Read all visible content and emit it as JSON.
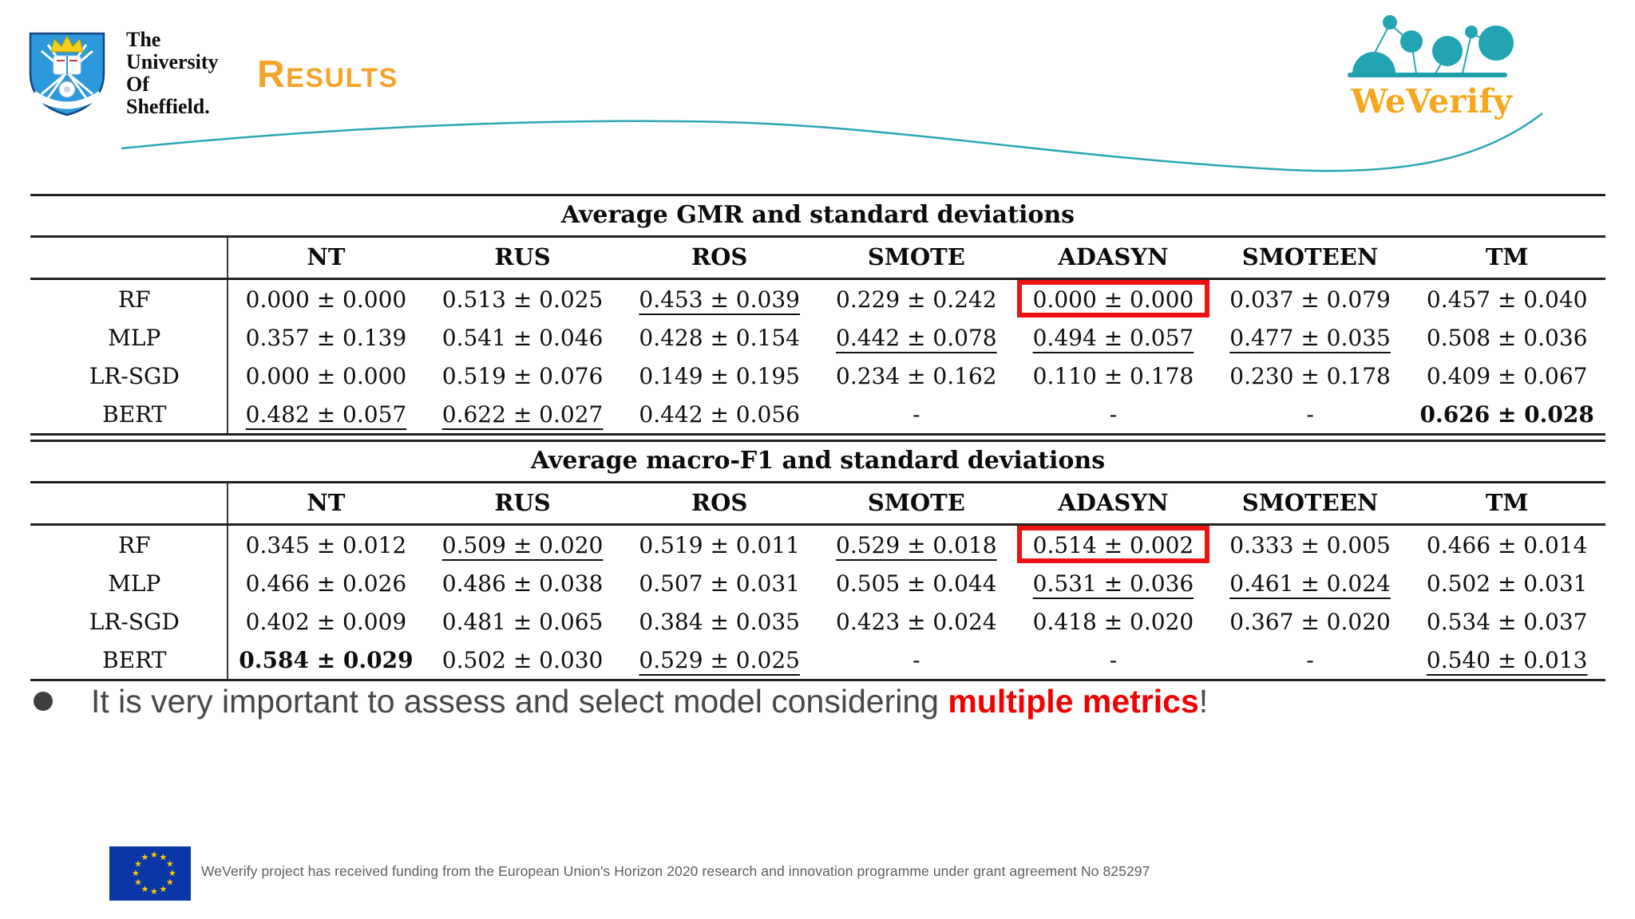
{
  "slide": {
    "university": {
      "lines": [
        "The",
        "University",
        "Of",
        "Sheffield."
      ]
    },
    "title": {
      "initial": "R",
      "rest": "ESULTS"
    },
    "weverify": {
      "wordmark": "WeVerify"
    }
  },
  "tables": [
    {
      "title": "Average GMR and standard deviations",
      "columns": [
        "NT",
        "RUS",
        "ROS",
        "SMOTE",
        "ADASYN",
        "SMOTEEN",
        "TM"
      ],
      "rows": [
        {
          "label": "RF",
          "cells": [
            {
              "v": "0.000 ± 0.000"
            },
            {
              "v": "0.513 ± 0.025"
            },
            {
              "v": "0.453 ± 0.039",
              "s": "u"
            },
            {
              "v": "0.229 ± 0.242"
            },
            {
              "v": "0.000 ± 0.000",
              "s": "box"
            },
            {
              "v": "0.037 ± 0.079"
            },
            {
              "v": "0.457 ± 0.040"
            }
          ]
        },
        {
          "label": "MLP",
          "cells": [
            {
              "v": "0.357 ± 0.139"
            },
            {
              "v": "0.541 ± 0.046"
            },
            {
              "v": "0.428 ± 0.154"
            },
            {
              "v": "0.442 ± 0.078",
              "s": "u"
            },
            {
              "v": "0.494 ± 0.057",
              "s": "u"
            },
            {
              "v": "0.477 ± 0.035",
              "s": "u"
            },
            {
              "v": "0.508 ± 0.036"
            }
          ]
        },
        {
          "label": "LR-SGD",
          "cells": [
            {
              "v": "0.000 ± 0.000"
            },
            {
              "v": "0.519 ± 0.076"
            },
            {
              "v": "0.149 ± 0.195"
            },
            {
              "v": "0.234 ± 0.162"
            },
            {
              "v": "0.110 ± 0.178"
            },
            {
              "v": "0.230 ± 0.178"
            },
            {
              "v": "0.409 ± 0.067"
            }
          ]
        },
        {
          "label": "BERT",
          "cells": [
            {
              "v": "0.482 ± 0.057",
              "s": "u"
            },
            {
              "v": "0.622 ± 0.027",
              "s": "u"
            },
            {
              "v": "0.442 ± 0.056"
            },
            {
              "v": "-"
            },
            {
              "v": "-"
            },
            {
              "v": "-"
            },
            {
              "v": "0.626 ± 0.028",
              "s": "b"
            }
          ]
        }
      ]
    },
    {
      "title": "Average macro-F1 and standard deviations",
      "columns": [
        "NT",
        "RUS",
        "ROS",
        "SMOTE",
        "ADASYN",
        "SMOTEEN",
        "TM"
      ],
      "rows": [
        {
          "label": "RF",
          "cells": [
            {
              "v": "0.345 ± 0.012"
            },
            {
              "v": "0.509 ± 0.020",
              "s": "u"
            },
            {
              "v": "0.519 ± 0.011"
            },
            {
              "v": "0.529 ± 0.018",
              "s": "u"
            },
            {
              "v": "0.514 ± 0.002",
              "s": "box"
            },
            {
              "v": "0.333 ± 0.005"
            },
            {
              "v": "0.466 ± 0.014"
            }
          ]
        },
        {
          "label": "MLP",
          "cells": [
            {
              "v": "0.466 ± 0.026"
            },
            {
              "v": "0.486 ± 0.038"
            },
            {
              "v": "0.507 ± 0.031"
            },
            {
              "v": "0.505 ± 0.044"
            },
            {
              "v": "0.531 ± 0.036",
              "s": "u"
            },
            {
              "v": "0.461 ± 0.024",
              "s": "u"
            },
            {
              "v": "0.502 ± 0.031"
            }
          ]
        },
        {
          "label": "LR-SGD",
          "cells": [
            {
              "v": "0.402 ± 0.009"
            },
            {
              "v": "0.481 ± 0.065"
            },
            {
              "v": "0.384 ± 0.035"
            },
            {
              "v": "0.423 ± 0.024"
            },
            {
              "v": "0.418 ± 0.020"
            },
            {
              "v": "0.367 ± 0.020"
            },
            {
              "v": "0.534 ± 0.037"
            }
          ]
        },
        {
          "label": "BERT",
          "cells": [
            {
              "v": "0.584 ± 0.029",
              "s": "b"
            },
            {
              "v": "0.502 ± 0.030"
            },
            {
              "v": "0.529 ± 0.025",
              "s": "u"
            },
            {
              "v": "-"
            },
            {
              "v": "-"
            },
            {
              "v": "-"
            },
            {
              "v": "0.540 ± 0.013",
              "s": "u"
            }
          ]
        }
      ]
    }
  ],
  "bullet": {
    "before": "It is very important to assess and select model considering ",
    "highlight": "multiple metrics",
    "after": "!"
  },
  "footer": {
    "funding_text": "WeVerify project has received funding from the European Union's Horizon 2020 research and innovation programme under grant agreement No 825297"
  },
  "colors": {
    "accent_teal": "#2AA6B4",
    "accent_orange": "#F4A42A",
    "highlight_red": "#ED1212",
    "bullet_red": "#F00000",
    "eu_blue": "#0B37A6",
    "eu_star_yellow": "#FFCC00"
  }
}
